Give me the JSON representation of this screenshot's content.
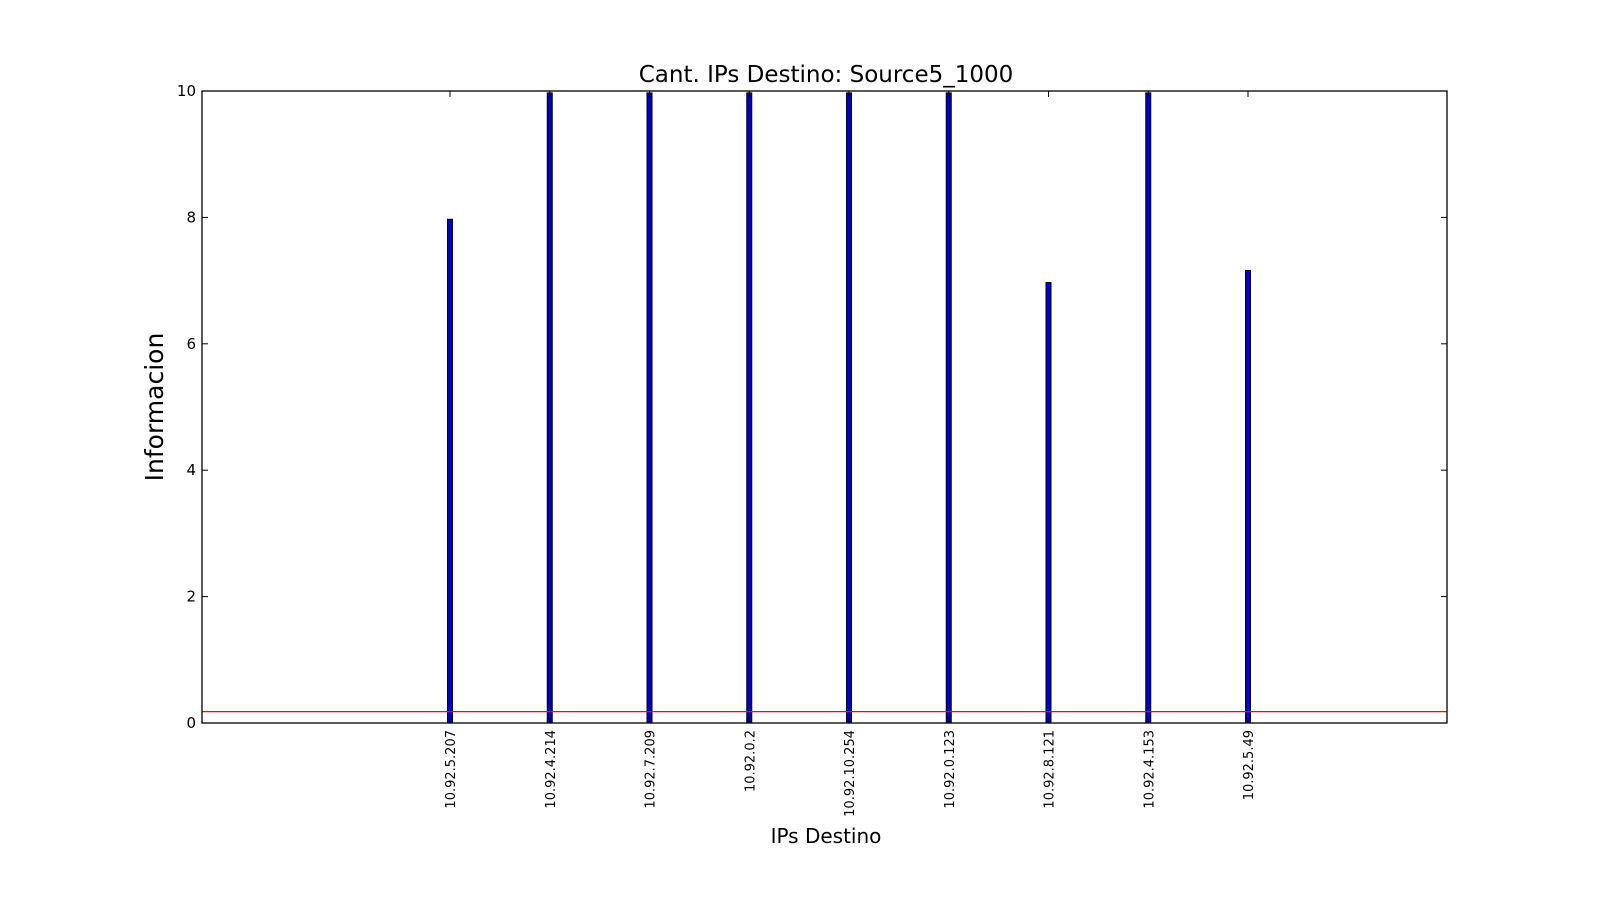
{
  "chart_data": {
    "type": "bar",
    "title": "Cant. IPs Destino: Source5_1000",
    "xlabel": "IPs Destino",
    "ylabel": "Informacion",
    "categories": [
      "10.92.5.207",
      "10.92.4.214",
      "10.92.7.209",
      "10.92.0.2",
      "10.92.10.254",
      "10.92.0.123",
      "10.92.8.121",
      "10.92.4.153",
      "10.92.5.49"
    ],
    "values": [
      7.97,
      9.97,
      9.97,
      9.97,
      9.97,
      9.97,
      6.97,
      9.97,
      7.16
    ],
    "ylim": [
      0,
      10
    ],
    "yticks": [
      0,
      2,
      4,
      6,
      8,
      10
    ],
    "reference_line": 0.18,
    "grid": false,
    "colors": {
      "bar": "#0000cc",
      "bar_edge": "#000000",
      "reference_line": "#ff0000",
      "axes": "#000000"
    }
  }
}
